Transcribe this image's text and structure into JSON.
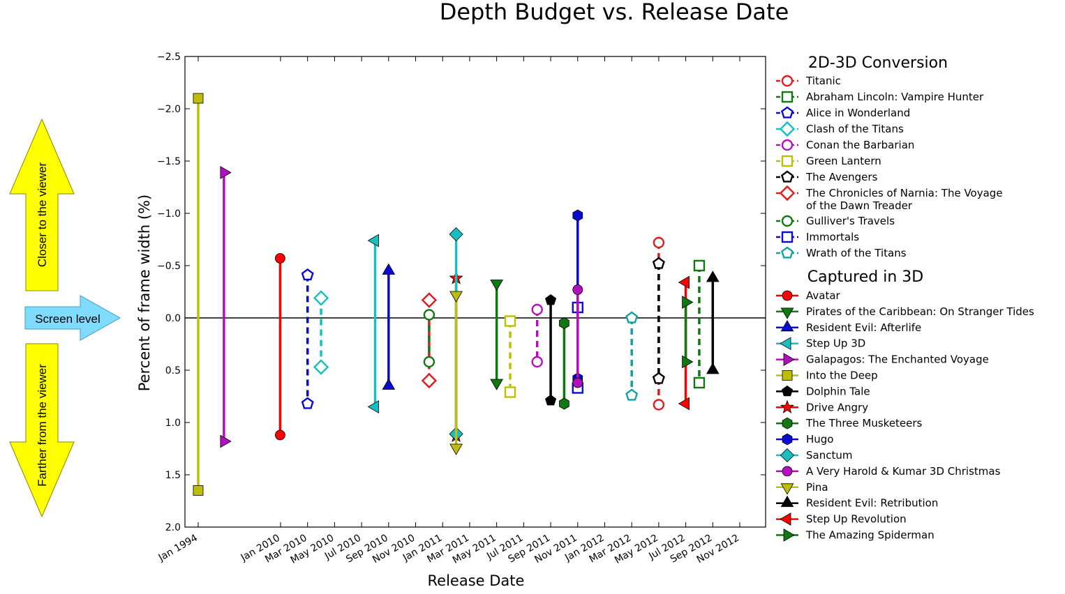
{
  "chart_data": {
    "type": "line",
    "title": "Depth Budget vs. Release Date",
    "xlabel": "Release Date",
    "ylabel": "Percent of frame width (%)",
    "ylim": [
      2.0,
      -2.5
    ],
    "yticks": [
      "−2.5",
      "−2.0",
      "−1.5",
      "−1.0",
      "−0.5",
      "0.0",
      "0.5",
      "1.0",
      "1.5",
      "2.0"
    ],
    "xticks": [
      "Jan 1994",
      "Jan 2010",
      "Mar 2010",
      "May 2010",
      "Jul 2010",
      "Sep 2010",
      "Nov 2010",
      "Jan 2011",
      "Mar 2011",
      "May 2011",
      "Jul 2011",
      "Sep 2011",
      "Nov 2011",
      "Jan 2012",
      "Mar 2012",
      "May 2012",
      "Jul 2012",
      "Sep 2012",
      "Nov 2012"
    ],
    "reference_line": 0.0,
    "grid": false,
    "legend_position": "outside-right",
    "annotations": {
      "closer": "Closer to the viewer",
      "screen": "Screen level",
      "farther": "Farther from the viewer"
    },
    "legend_groups": [
      {
        "title": "2D-3D Conversion",
        "line_style": "dashed",
        "filled": false
      },
      {
        "title": "Captured in 3D",
        "line_style": "solid",
        "filled": true
      }
    ],
    "series": [
      {
        "name": "Titanic",
        "group": 0,
        "color": "#e31a1c",
        "marker": "circle",
        "date": "May 2012",
        "values": [
          -0.72,
          0.83
        ]
      },
      {
        "name": "Abraham Lincoln: Vampire Hunter",
        "group": 0,
        "color": "#117711",
        "marker": "square",
        "date": "Aug 2012",
        "values": [
          -0.5,
          0.62
        ]
      },
      {
        "name": "Alice in Wonderland",
        "group": 0,
        "color": "#0a0ad0",
        "marker": "pentagon",
        "date": "Mar 2010",
        "values": [
          -0.41,
          0.82
        ]
      },
      {
        "name": "Clash of the Titans",
        "group": 0,
        "color": "#16c0c0",
        "marker": "diamond",
        "date": "Apr 2010",
        "values": [
          -0.19,
          0.47
        ]
      },
      {
        "name": "Conan the Barbarian",
        "group": 0,
        "color": "#b30fbf",
        "marker": "circle",
        "date": "Aug 2011",
        "values": [
          -0.08,
          0.42
        ]
      },
      {
        "name": "Green Lantern",
        "group": 0,
        "color": "#bdbd0a",
        "marker": "square",
        "date": "Jun 2011",
        "values": [
          0.03,
          0.71
        ]
      },
      {
        "name": "The Avengers",
        "group": 0,
        "color": "#000000",
        "marker": "pentagon",
        "date": "May 2012",
        "values": [
          -0.52,
          0.58
        ]
      },
      {
        "name": "The Chronicles of Narnia: The Voyage of the Dawn Treader",
        "group": 0,
        "color": "#e31a1c",
        "marker": "diamond",
        "date": "Dec 2010",
        "values": [
          -0.17,
          0.6
        ]
      },
      {
        "name": "Gulliver's Travels",
        "group": 0,
        "color": "#117711",
        "marker": "circle",
        "date": "Dec 2010",
        "values": [
          -0.03,
          0.42
        ]
      },
      {
        "name": "Immortals",
        "group": 0,
        "color": "#0a0ad0",
        "marker": "square",
        "date": "Nov 2011",
        "values": [
          -0.1,
          0.67
        ]
      },
      {
        "name": "Wrath of the Titans",
        "group": 0,
        "color": "#16a0a0",
        "marker": "pentagon",
        "date": "Mar 2012",
        "values": [
          0.0,
          0.74
        ]
      },
      {
        "name": "Avatar",
        "group": 1,
        "color": "#ff0000",
        "marker": "circle",
        "date": "Dec 2009",
        "values": [
          -0.57,
          1.12
        ]
      },
      {
        "name": "Pirates of the Caribbean: On Stranger Tides",
        "group": 1,
        "color": "#117711",
        "marker": "triangle-down",
        "date": "May 2011",
        "values": [
          -0.33,
          0.62
        ]
      },
      {
        "name": "Resident Evil: Afterlife",
        "group": 1,
        "color": "#0a0ad0",
        "marker": "triangle-up",
        "date": "Sep 2010",
        "values": [
          -0.45,
          0.65
        ]
      },
      {
        "name": "Step Up 3D",
        "group": 1,
        "color": "#16c0c0",
        "marker": "triangle-left",
        "date": "Aug 2010",
        "values": [
          -0.74,
          0.85
        ]
      },
      {
        "name": "Galapagos: The Enchanted Voyage",
        "group": 1,
        "color": "#b30fbf",
        "marker": "triangle-right",
        "date": "Jan 1999",
        "values": [
          -1.39,
          1.18
        ]
      },
      {
        "name": "Into the Deep",
        "group": 1,
        "color": "#bdbd0a",
        "marker": "square",
        "date": "Jan 1994",
        "values": [
          -2.1,
          1.65
        ]
      },
      {
        "name": "Dolphin Tale",
        "group": 1,
        "color": "#000000",
        "marker": "pentagon",
        "date": "Sep 2011",
        "values": [
          -0.17,
          0.79
        ]
      },
      {
        "name": "Drive Angry",
        "group": 1,
        "color": "#ff0000",
        "marker": "star",
        "date": "Feb 2011",
        "values": [
          -0.38,
          1.13
        ]
      },
      {
        "name": "The Three Musketeers",
        "group": 1,
        "color": "#117711",
        "marker": "hexagon",
        "date": "Oct 2011",
        "values": [
          0.05,
          0.82
        ]
      },
      {
        "name": "Hugo",
        "group": 1,
        "color": "#0a0ad0",
        "marker": "hexagon",
        "date": "Nov 2011",
        "values": [
          -0.98,
          0.58
        ]
      },
      {
        "name": "Sanctum",
        "group": 1,
        "color": "#16c0c0",
        "marker": "diamond",
        "date": "Feb 2011",
        "values": [
          -0.8,
          1.11
        ]
      },
      {
        "name": "A Very Harold & Kumar 3D Christmas",
        "group": 1,
        "color": "#b30fbf",
        "marker": "circle",
        "date": "Nov 2011",
        "values": [
          -0.27,
          0.62
        ]
      },
      {
        "name": "Pina",
        "group": 1,
        "color": "#bdbd0a",
        "marker": "triangle-down",
        "date": "Feb 2011",
        "values": [
          -0.22,
          1.24
        ]
      },
      {
        "name": "Resident Evil: Retribution",
        "group": 1,
        "color": "#000000",
        "marker": "triangle-up",
        "date": "Sep 2012",
        "values": [
          -0.38,
          0.5
        ]
      },
      {
        "name": "Step Up Revolution",
        "group": 1,
        "color": "#ff0000",
        "marker": "triangle-left",
        "date": "Jul 2012",
        "values": [
          -0.34,
          0.82
        ]
      },
      {
        "name": "The Amazing Spiderman",
        "group": 1,
        "color": "#117711",
        "marker": "triangle-right",
        "date": "Jul 2012",
        "values": [
          -0.15,
          0.42
        ]
      }
    ]
  }
}
